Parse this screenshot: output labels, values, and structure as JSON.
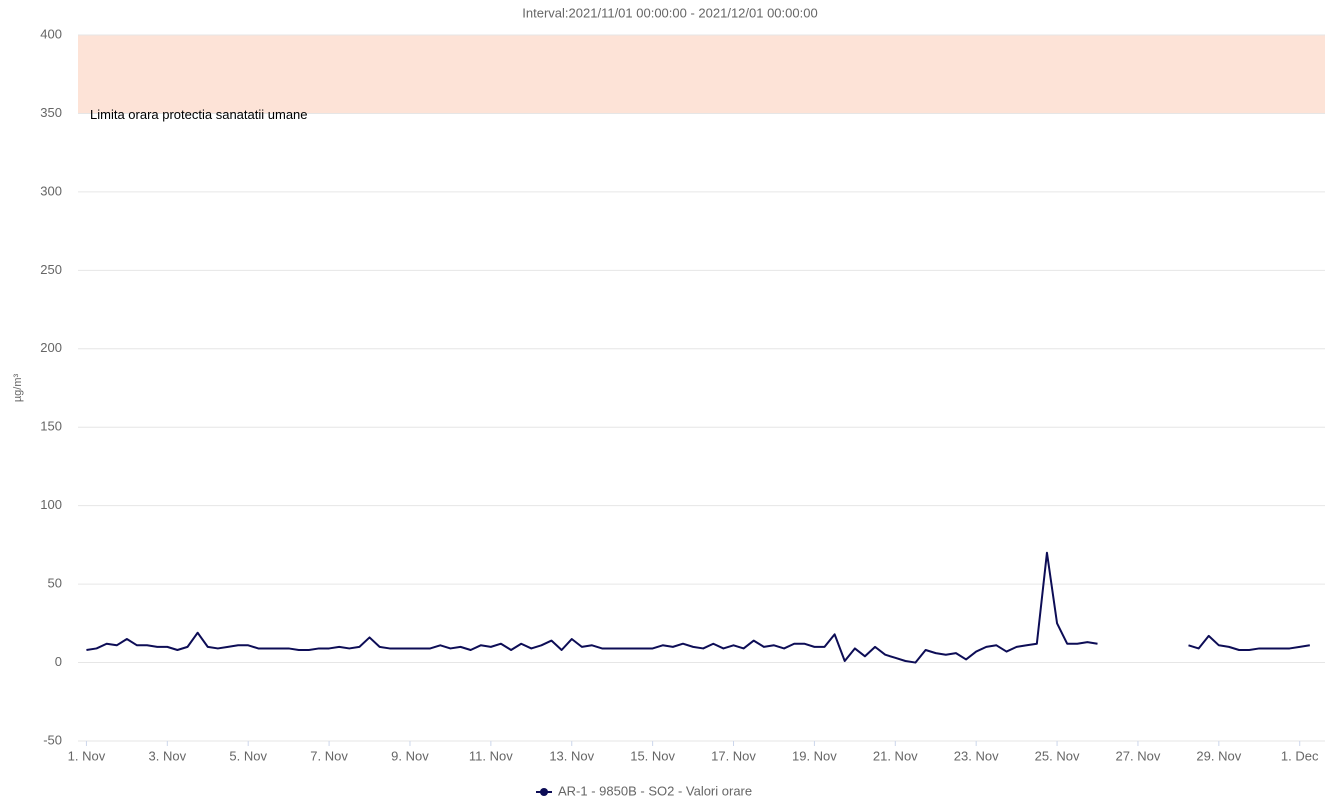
{
  "chart_data": {
    "type": "line",
    "title": "Interval:2021/11/01 00:00:00 - 2021/12/01 00:00:00",
    "y_label": "µg/m³",
    "xlim": [
      "2021-10-31 19:00",
      "2021-12-01 15:00"
    ],
    "xticks": [
      {
        "value": "2021-11-01 00:00",
        "label": "1. Nov"
      },
      {
        "value": "2021-11-03 00:00",
        "label": "3. Nov"
      },
      {
        "value": "2021-11-05 00:00",
        "label": "5. Nov"
      },
      {
        "value": "2021-11-07 00:00",
        "label": "7. Nov"
      },
      {
        "value": "2021-11-09 00:00",
        "label": "9. Nov"
      },
      {
        "value": "2021-11-11 00:00",
        "label": "11. Nov"
      },
      {
        "value": "2021-11-13 00:00",
        "label": "13. Nov"
      },
      {
        "value": "2021-11-15 00:00",
        "label": "15. Nov"
      },
      {
        "value": "2021-11-17 00:00",
        "label": "17. Nov"
      },
      {
        "value": "2021-11-19 00:00",
        "label": "19. Nov"
      },
      {
        "value": "2021-11-21 00:00",
        "label": "21. Nov"
      },
      {
        "value": "2021-11-23 00:00",
        "label": "23. Nov"
      },
      {
        "value": "2021-11-25 00:00",
        "label": "25. Nov"
      },
      {
        "value": "2021-11-27 00:00",
        "label": "27. Nov"
      },
      {
        "value": "2021-11-29 00:00",
        "label": "29. Nov"
      },
      {
        "value": "2021-12-01 00:00",
        "label": "1. Dec"
      }
    ],
    "ylim": [
      -50,
      400
    ],
    "yticks": [
      -50,
      0,
      50,
      100,
      150,
      200,
      250,
      300,
      350,
      400
    ],
    "grid": true,
    "plot_bands": [
      {
        "from": 350,
        "to": 400,
        "color": "#fde3d7",
        "label": "Limita orara protectia sanatatii umane"
      }
    ],
    "x": [
      "2021-11-01 00:00",
      "2021-11-01 06:00",
      "2021-11-01 12:00",
      "2021-11-01 18:00",
      "2021-11-02 00:00",
      "2021-11-02 06:00",
      "2021-11-02 12:00",
      "2021-11-02 18:00",
      "2021-11-03 00:00",
      "2021-11-03 06:00",
      "2021-11-03 12:00",
      "2021-11-03 18:00",
      "2021-11-04 00:00",
      "2021-11-04 06:00",
      "2021-11-04 12:00",
      "2021-11-04 18:00",
      "2021-11-05 00:00",
      "2021-11-05 06:00",
      "2021-11-05 12:00",
      "2021-11-05 18:00",
      "2021-11-06 00:00",
      "2021-11-06 06:00",
      "2021-11-06 12:00",
      "2021-11-06 18:00",
      "2021-11-07 00:00",
      "2021-11-07 06:00",
      "2021-11-07 12:00",
      "2021-11-07 18:00",
      "2021-11-08 00:00",
      "2021-11-08 06:00",
      "2021-11-08 12:00",
      "2021-11-08 18:00",
      "2021-11-09 00:00",
      "2021-11-09 06:00",
      "2021-11-09 12:00",
      "2021-11-09 18:00",
      "2021-11-10 00:00",
      "2021-11-10 06:00",
      "2021-11-10 12:00",
      "2021-11-10 18:00",
      "2021-11-11 00:00",
      "2021-11-11 06:00",
      "2021-11-11 12:00",
      "2021-11-11 18:00",
      "2021-11-12 00:00",
      "2021-11-12 06:00",
      "2021-11-12 12:00",
      "2021-11-12 18:00",
      "2021-11-13 00:00",
      "2021-11-13 06:00",
      "2021-11-13 12:00",
      "2021-11-13 18:00",
      "2021-11-14 00:00",
      "2021-11-14 06:00",
      "2021-11-14 12:00",
      "2021-11-14 18:00",
      "2021-11-15 00:00",
      "2021-11-15 06:00",
      "2021-11-15 12:00",
      "2021-11-15 18:00",
      "2021-11-16 00:00",
      "2021-11-16 06:00",
      "2021-11-16 12:00",
      "2021-11-16 18:00",
      "2021-11-17 00:00",
      "2021-11-17 06:00",
      "2021-11-17 12:00",
      "2021-11-17 18:00",
      "2021-11-18 00:00",
      "2021-11-18 06:00",
      "2021-11-18 12:00",
      "2021-11-18 18:00",
      "2021-11-19 00:00",
      "2021-11-19 06:00",
      "2021-11-19 12:00",
      "2021-11-19 18:00",
      "2021-11-20 00:00",
      "2021-11-20 06:00",
      "2021-11-20 12:00",
      "2021-11-20 18:00",
      "2021-11-21 00:00",
      "2021-11-21 06:00",
      "2021-11-21 12:00",
      "2021-11-21 18:00",
      "2021-11-22 00:00",
      "2021-11-22 06:00",
      "2021-11-22 12:00",
      "2021-11-22 18:00",
      "2021-11-23 00:00",
      "2021-11-23 06:00",
      "2021-11-23 12:00",
      "2021-11-23 18:00",
      "2021-11-24 00:00",
      "2021-11-24 06:00",
      "2021-11-24 12:00",
      "2021-11-24 18:00",
      "2021-11-25 00:00",
      "2021-11-25 06:00",
      "2021-11-25 12:00",
      "2021-11-25 18:00",
      "2021-11-26 00:00",
      "2021-11-26 06:00",
      "2021-11-26 12:00",
      "2021-11-26 18:00",
      "2021-11-27 00:00",
      "2021-11-27 06:00",
      "2021-11-27 12:00",
      "2021-11-27 18:00",
      "2021-11-28 00:00",
      "2021-11-28 06:00",
      "2021-11-28 12:00",
      "2021-11-28 18:00",
      "2021-11-29 00:00",
      "2021-11-29 06:00",
      "2021-11-29 12:00",
      "2021-11-29 18:00",
      "2021-11-30 00:00",
      "2021-11-30 06:00",
      "2021-11-30 12:00",
      "2021-11-30 18:00",
      "2021-12-01 00:00",
      "2021-12-01 06:00"
    ],
    "series": [
      {
        "name": "AR-1 - 9850B - SO2 - Valori orare",
        "color": "#0d0d56",
        "values": [
          8,
          9,
          12,
          11,
          15,
          11,
          11,
          10,
          10,
          8,
          10,
          19,
          10,
          9,
          10,
          11,
          11,
          9,
          9,
          9,
          9,
          8,
          8,
          9,
          9,
          10,
          9,
          10,
          16,
          10,
          9,
          9,
          9,
          9,
          9,
          11,
          9,
          10,
          8,
          11,
          10,
          12,
          8,
          12,
          9,
          11,
          14,
          8,
          15,
          10,
          11,
          9,
          9,
          9,
          9,
          9,
          9,
          11,
          10,
          12,
          10,
          9,
          12,
          9,
          11,
          9,
          14,
          10,
          11,
          9,
          12,
          12,
          10,
          10,
          18,
          1,
          9,
          4,
          10,
          5,
          3,
          1,
          0,
          8,
          6,
          5,
          6,
          2,
          7,
          10,
          11,
          7,
          10,
          11,
          12,
          70,
          25,
          12,
          12,
          13,
          12,
          null,
          null,
          null,
          null,
          null,
          null,
          null,
          null,
          11,
          9,
          17,
          11,
          10,
          8,
          8,
          9,
          9,
          9,
          9,
          10,
          11
        ]
      }
    ]
  }
}
